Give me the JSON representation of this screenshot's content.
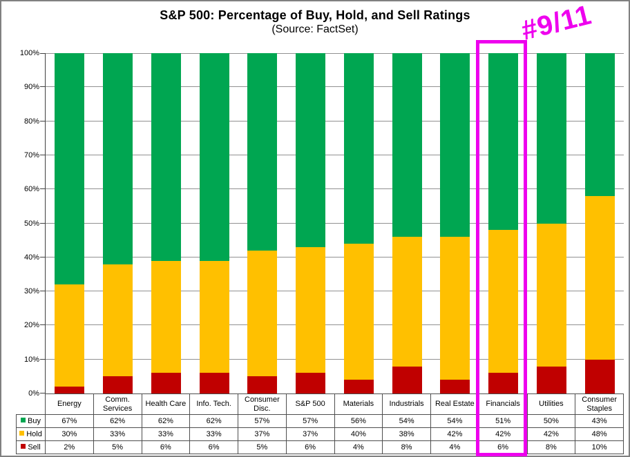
{
  "header": {
    "title": "S&P 500: Percentage of Buy, Hold, and Sell Ratings",
    "subtitle": "(Source: FactSet)"
  },
  "annotation": {
    "text": "#9/11",
    "color": "#EE00EE"
  },
  "chart_data": {
    "type": "bar",
    "stacked": true,
    "title": "S&P 500: Percentage of Buy, Hold, and Sell Ratings",
    "subtitle": "(Source: FactSet)",
    "categories": [
      "Energy",
      "Comm. Services",
      "Health Care",
      "Info. Tech.",
      "Consumer Disc.",
      "S&P 500",
      "Materials",
      "Industrials",
      "Real Estate",
      "Financials",
      "Utilities",
      "Consumer Staples"
    ],
    "series": [
      {
        "name": "Buy",
        "color": "#00A651",
        "values": [
          67,
          62,
          62,
          62,
          57,
          57,
          56,
          54,
          54,
          51,
          50,
          43
        ]
      },
      {
        "name": "Hold",
        "color": "#FFC000",
        "values": [
          30,
          33,
          33,
          33,
          37,
          37,
          40,
          38,
          42,
          42,
          42,
          48
        ]
      },
      {
        "name": "Sell",
        "color": "#C00000",
        "values": [
          2,
          5,
          6,
          6,
          5,
          6,
          4,
          8,
          4,
          6,
          8,
          10
        ]
      }
    ],
    "value_suffix": "%",
    "ylim": [
      0,
      100
    ],
    "ytick_labels": [
      "0%",
      "10%",
      "20%",
      "30%",
      "40%",
      "50%",
      "60%",
      "70%",
      "80%",
      "90%",
      "100%"
    ],
    "grid": true,
    "legend_position": "table-left",
    "highlight": {
      "category": "Financials",
      "color": "#EE00EE"
    }
  }
}
